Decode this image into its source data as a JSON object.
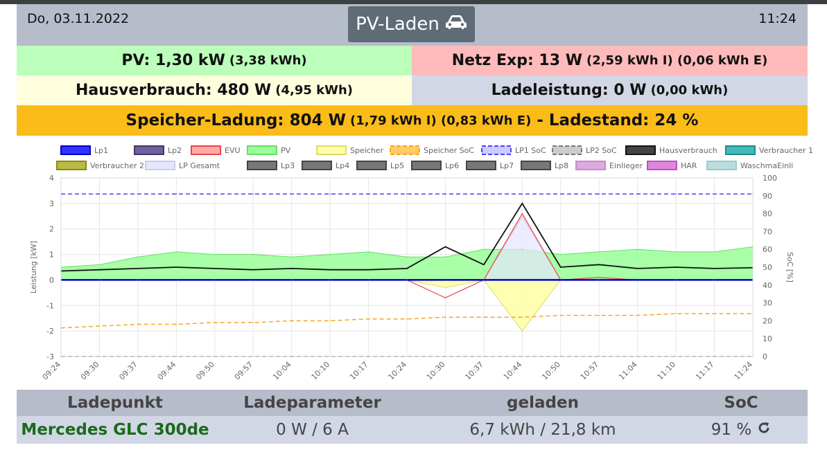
{
  "header": {
    "date": "Do, 03.11.2022",
    "time": "11:24",
    "title": "PV-Laden",
    "title_icon": "car-icon"
  },
  "summary": {
    "pv_main": "PV: 1,30 kW",
    "pv_sub": "(3,38 kWh)",
    "netz_main": "Netz Exp: 13 W",
    "netz_sub": "(2,59 kWh I) (0,06 kWh E)",
    "haus_main": "Hausverbrauch: 480 W",
    "haus_sub": "(4,95 kWh)",
    "lade_main": "Ladeleistung: 0 W",
    "lade_sub": "(0,00 kWh)",
    "speicher_main": "Speicher-Ladung: 804 W",
    "speicher_sub": "(1,79 kWh I) (0,83 kWh E)",
    "speicher_soc": "- Ladestand: 24 %"
  },
  "colors": {
    "pv": "#bbffbb",
    "netz": "#ffbbbb",
    "haus": "#ffffdd",
    "lade": "#d2d7e6",
    "speicher": "#fbbc1a",
    "header": "#b6bcc9",
    "car_text": "#1a6b1a"
  },
  "chart_data": {
    "type": "line",
    "x": [
      "09:24",
      "09:30",
      "09:37",
      "09:44",
      "09:50",
      "09:57",
      "10:04",
      "10:10",
      "10:17",
      "10:24",
      "10:30",
      "10:37",
      "10:44",
      "10:50",
      "10:57",
      "11:04",
      "11:10",
      "11:17",
      "11:24"
    ],
    "ylabel": "Leistung [kW]",
    "ylabel_right": "SoC [%]",
    "ylim": [
      -3,
      4
    ],
    "yticks": [
      "4",
      "3",
      "2",
      "1",
      "0",
      "-1",
      "-2",
      "-3"
    ],
    "ylim_right": [
      0,
      100
    ],
    "yticks_right": [
      "100",
      "90",
      "80",
      "70",
      "60",
      "50",
      "40",
      "30",
      "20",
      "10",
      "0"
    ],
    "legend_position": "top",
    "legend": [
      {
        "name": "Lp1",
        "fill": "#3333ff",
        "stroke": "#0000cc",
        "dash": false
      },
      {
        "name": "Lp2",
        "fill": "#7060a0",
        "stroke": "#443366",
        "dash": false
      },
      {
        "name": "EVU",
        "fill": "#ffaaaa",
        "stroke": "#ee4444",
        "dash": false
      },
      {
        "name": "PV",
        "fill": "#99ff99",
        "stroke": "#66dd66",
        "dash": false
      },
      {
        "name": "Speicher",
        "fill": "#ffffaa",
        "stroke": "#dddd66",
        "dash": false
      },
      {
        "name": "Speicher SoC",
        "fill": "#ffcc66",
        "stroke": "#f5a623",
        "dash": true
      },
      {
        "name": "LP1 SoC",
        "fill": "#ccccff",
        "stroke": "#4444ff",
        "dash": true
      },
      {
        "name": "LP2 SoC",
        "fill": "#cccccc",
        "stroke": "#777777",
        "dash": true
      },
      {
        "name": "Hausverbrauch",
        "fill": "#444444",
        "stroke": "#111111",
        "dash": false
      },
      {
        "name": "Verbraucher 1",
        "fill": "#44bbbb",
        "stroke": "#228888",
        "dash": false
      },
      {
        "name": "Verbraucher 2",
        "fill": "#bbbb44",
        "stroke": "#888822",
        "dash": false
      },
      {
        "name": "LP Gesamt",
        "fill": "#e6e6ff",
        "stroke": "#cccce8",
        "dash": false
      },
      {
        "name": "Lp3",
        "fill": "#777777",
        "stroke": "#444444",
        "dash": false
      },
      {
        "name": "Lp4",
        "fill": "#777777",
        "stroke": "#444444",
        "dash": false
      },
      {
        "name": "Lp5",
        "fill": "#777777",
        "stroke": "#444444",
        "dash": false
      },
      {
        "name": "Lp6",
        "fill": "#777777",
        "stroke": "#444444",
        "dash": false
      },
      {
        "name": "Lp7",
        "fill": "#777777",
        "stroke": "#444444",
        "dash": false
      },
      {
        "name": "Lp8",
        "fill": "#777777",
        "stroke": "#444444",
        "dash": false
      },
      {
        "name": "Einlieger",
        "fill": "#ddaadd",
        "stroke": "#cc88cc",
        "dash": false
      },
      {
        "name": "HAR",
        "fill": "#dd88dd",
        "stroke": "#bb55bb",
        "dash": false
      },
      {
        "name": "WaschmaEinli",
        "fill": "#bbdddd",
        "stroke": "#99cccc",
        "dash": false
      }
    ],
    "series": [
      {
        "name": "PV",
        "values": [
          0.5,
          0.6,
          0.9,
          1.1,
          1.0,
          1.0,
          0.9,
          1.0,
          1.1,
          0.9,
          0.9,
          1.2,
          1.2,
          1.0,
          1.1,
          1.2,
          1.1,
          1.1,
          1.3
        ]
      },
      {
        "name": "Hausverbrauch",
        "values": [
          0.35,
          0.4,
          0.45,
          0.5,
          0.45,
          0.4,
          0.45,
          0.4,
          0.4,
          0.45,
          1.3,
          0.6,
          3.0,
          0.5,
          0.6,
          0.45,
          0.5,
          0.45,
          0.48
        ]
      },
      {
        "name": "Speicher",
        "values": [
          0,
          0,
          0,
          0,
          0,
          0,
          0,
          0,
          0,
          0,
          -0.3,
          0,
          -2.0,
          0,
          0,
          0,
          0,
          0,
          0
        ]
      },
      {
        "name": "EVU",
        "values": [
          0,
          0,
          0,
          0,
          0,
          0,
          0,
          0,
          0,
          0,
          -0.7,
          0,
          2.6,
          0,
          0.1,
          0,
          0,
          0,
          0
        ]
      },
      {
        "name": "LP Gesamt",
        "values": [
          0,
          0,
          0,
          0,
          0,
          0,
          0,
          0,
          0,
          0,
          0,
          0,
          2.5,
          0,
          0,
          0,
          0,
          0,
          0
        ]
      },
      {
        "name": "Lp1",
        "values": [
          0,
          0,
          0,
          0,
          0,
          0,
          0,
          0,
          0,
          0,
          0,
          0,
          0,
          0,
          0,
          0,
          0,
          0,
          0
        ]
      },
      {
        "name": "Speicher SoC",
        "values": [
          16,
          17,
          18,
          18,
          19,
          19,
          20,
          20,
          21,
          21,
          22,
          22,
          22,
          23,
          23,
          23,
          24,
          24,
          24
        ]
      },
      {
        "name": "LP1 SoC",
        "values": [
          91,
          91,
          91,
          91,
          91,
          91,
          91,
          91,
          91,
          91,
          91,
          91,
          91,
          91,
          91,
          91,
          91,
          91,
          91
        ]
      },
      {
        "name": "LP2 SoC",
        "values": [
          0,
          0,
          0,
          0,
          0,
          0,
          0,
          0,
          0,
          0,
          0,
          0,
          0,
          0,
          0,
          0,
          0,
          0,
          0
        ]
      }
    ]
  },
  "table": {
    "headers": [
      "Ladepunkt",
      "Ladeparameter",
      "geladen",
      "SoC"
    ],
    "row": {
      "car": "Mercedes GLC 300de",
      "param": "0 W / 6 A",
      "geladen": "6,7 kWh / 21,8 km",
      "soc": "91 %",
      "soc_icon": "reload-icon"
    }
  }
}
